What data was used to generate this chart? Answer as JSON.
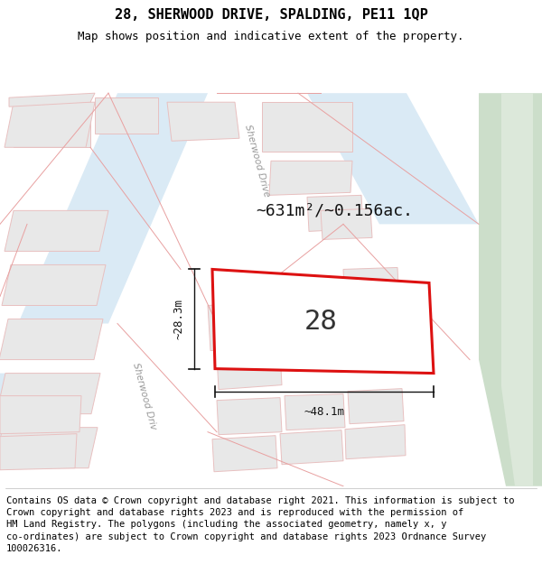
{
  "title": "28, SHERWOOD DRIVE, SPALDING, PE11 1QP",
  "subtitle": "Map shows position and indicative extent of the property.",
  "footer": "Contains OS data © Crown copyright and database right 2021. This information is subject to\nCrown copyright and database rights 2023 and is reproduced with the permission of\nHM Land Registry. The polygons (including the associated geometry, namely x, y\nco-ordinates) are subject to Crown copyright and database rights 2023 Ordnance Survey\n100026316.",
  "area_label": "~631m²/~0.156ac.",
  "width_label": "~48.1m",
  "height_label": "~28.3m",
  "number_label": "28",
  "map_bg": "#ffffff",
  "road_band_color": "#daeaf5",
  "green_strip_color": "#ccdeca",
  "green_strip2_color": "#dce8da",
  "property_fill": "#e8e8e8",
  "property_stroke": "#e8c0c0",
  "main_fill": "#ffffff",
  "main_stroke": "#dd1111",
  "dim_color": "#111111",
  "road_label_color": "#999999",
  "title_fontsize": 11,
  "subtitle_fontsize": 9,
  "footer_fontsize": 7.5,
  "number_fontsize": 22,
  "area_fontsize": 13,
  "dim_fontsize": 9,
  "road_fontsize": 7.5
}
